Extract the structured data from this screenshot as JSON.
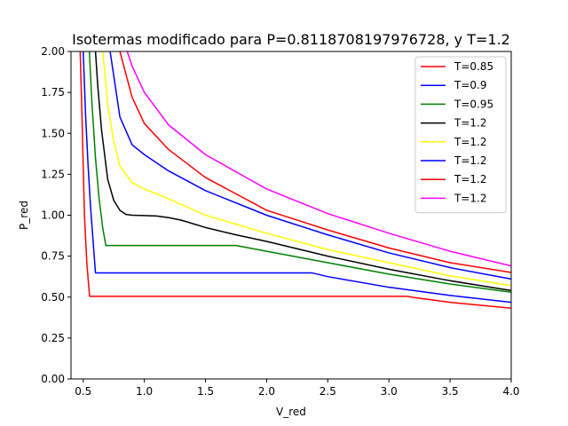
{
  "chart_data": {
    "type": "line",
    "title": "Isotermas modificado para P=0.8118708197976728, y T=1.2",
    "xlabel": "V_red",
    "ylabel": "P_red",
    "xlim": [
      0.4,
      4.0
    ],
    "ylim": [
      0.0,
      2.0
    ],
    "xticks": [
      0.5,
      1.0,
      1.5,
      2.0,
      2.5,
      3.0,
      3.5,
      4.0
    ],
    "xtick_labels": [
      "0.5",
      "1.0",
      "1.5",
      "2.0",
      "2.5",
      "3.0",
      "3.5",
      "4.0"
    ],
    "yticks": [
      0.0,
      0.25,
      0.5,
      0.75,
      1.0,
      1.25,
      1.5,
      1.75,
      2.0
    ],
    "ytick_labels": [
      "0.00",
      "0.25",
      "0.50",
      "0.75",
      "1.00",
      "1.25",
      "1.50",
      "1.75",
      "2.00"
    ],
    "grid": false,
    "legend_position": "top-right",
    "series": [
      {
        "name": "T=0.85",
        "color": "#ff0000",
        "x": [
          0.475,
          0.49,
          0.5,
          0.51,
          0.53,
          0.552,
          0.6,
          1.0,
          2.0,
          3.0,
          3.15,
          3.2,
          3.5,
          4.0
        ],
        "y": [
          2.0,
          1.6,
          1.3,
          1.0,
          0.7,
          0.505,
          0.505,
          0.505,
          0.505,
          0.505,
          0.505,
          0.498,
          0.468,
          0.432
        ]
      },
      {
        "name": "T=0.9",
        "color": "#0000ff",
        "x": [
          0.5,
          0.52,
          0.54,
          0.56,
          0.58,
          0.6,
          0.65,
          1.0,
          2.0,
          2.37,
          2.5,
          3.0,
          3.5,
          4.0
        ],
        "y": [
          2.0,
          1.6,
          1.3,
          1.05,
          0.85,
          0.648,
          0.648,
          0.648,
          0.648,
          0.648,
          0.625,
          0.56,
          0.51,
          0.468
        ]
      },
      {
        "name": "T=0.95",
        "color": "#008000",
        "x": [
          0.55,
          0.57,
          0.6,
          0.63,
          0.66,
          0.685,
          0.75,
          1.0,
          1.5,
          1.75,
          2.0,
          2.5,
          3.0,
          3.5,
          4.0
        ],
        "y": [
          2.0,
          1.7,
          1.35,
          1.1,
          0.92,
          0.815,
          0.815,
          0.815,
          0.815,
          0.815,
          0.78,
          0.71,
          0.64,
          0.58,
          0.53
        ]
      },
      {
        "name": "T=1.2",
        "color": "#000000",
        "x": [
          0.6,
          0.62,
          0.65,
          0.7,
          0.75,
          0.8,
          0.85,
          0.9,
          1.0,
          1.1,
          1.2,
          1.3,
          1.5,
          1.75,
          2.0,
          2.5,
          3.0,
          3.5,
          4.0
        ],
        "y": [
          2.0,
          1.78,
          1.52,
          1.22,
          1.09,
          1.03,
          1.005,
          1.0,
          0.998,
          0.995,
          0.985,
          0.97,
          0.925,
          0.88,
          0.84,
          0.75,
          0.67,
          0.6,
          0.54
        ]
      },
      {
        "name": "T=1.2",
        "color": "#ffff00",
        "x": [
          0.66,
          0.7,
          0.75,
          0.8,
          0.9,
          1.0,
          1.2,
          1.5,
          2.0,
          2.5,
          3.0,
          3.5,
          4.0
        ],
        "y": [
          2.0,
          1.68,
          1.45,
          1.3,
          1.2,
          1.16,
          1.1,
          1.0,
          0.89,
          0.79,
          0.71,
          0.63,
          0.57
        ]
      },
      {
        "name": "T=1.2",
        "color": "#0000ff",
        "x": [
          0.72,
          0.8,
          0.9,
          1.0,
          1.2,
          1.5,
          2.0,
          2.5,
          3.0,
          3.5,
          4.0
        ],
        "y": [
          2.0,
          1.6,
          1.43,
          1.37,
          1.27,
          1.15,
          1.0,
          0.88,
          0.77,
          0.68,
          0.61
        ]
      },
      {
        "name": "T=1.2",
        "color": "#ff0000",
        "x": [
          0.8,
          0.9,
          1.0,
          1.2,
          1.5,
          2.0,
          2.5,
          3.0,
          3.5,
          4.0
        ],
        "y": [
          2.0,
          1.72,
          1.56,
          1.4,
          1.23,
          1.03,
          0.91,
          0.8,
          0.71,
          0.65
        ]
      },
      {
        "name": "T=1.2",
        "color": "#ff00ff",
        "x": [
          0.86,
          0.9,
          1.0,
          1.2,
          1.5,
          2.0,
          2.5,
          3.0,
          3.5,
          4.0
        ],
        "y": [
          2.0,
          1.91,
          1.75,
          1.55,
          1.37,
          1.16,
          1.01,
          0.89,
          0.78,
          0.69
        ]
      }
    ]
  }
}
